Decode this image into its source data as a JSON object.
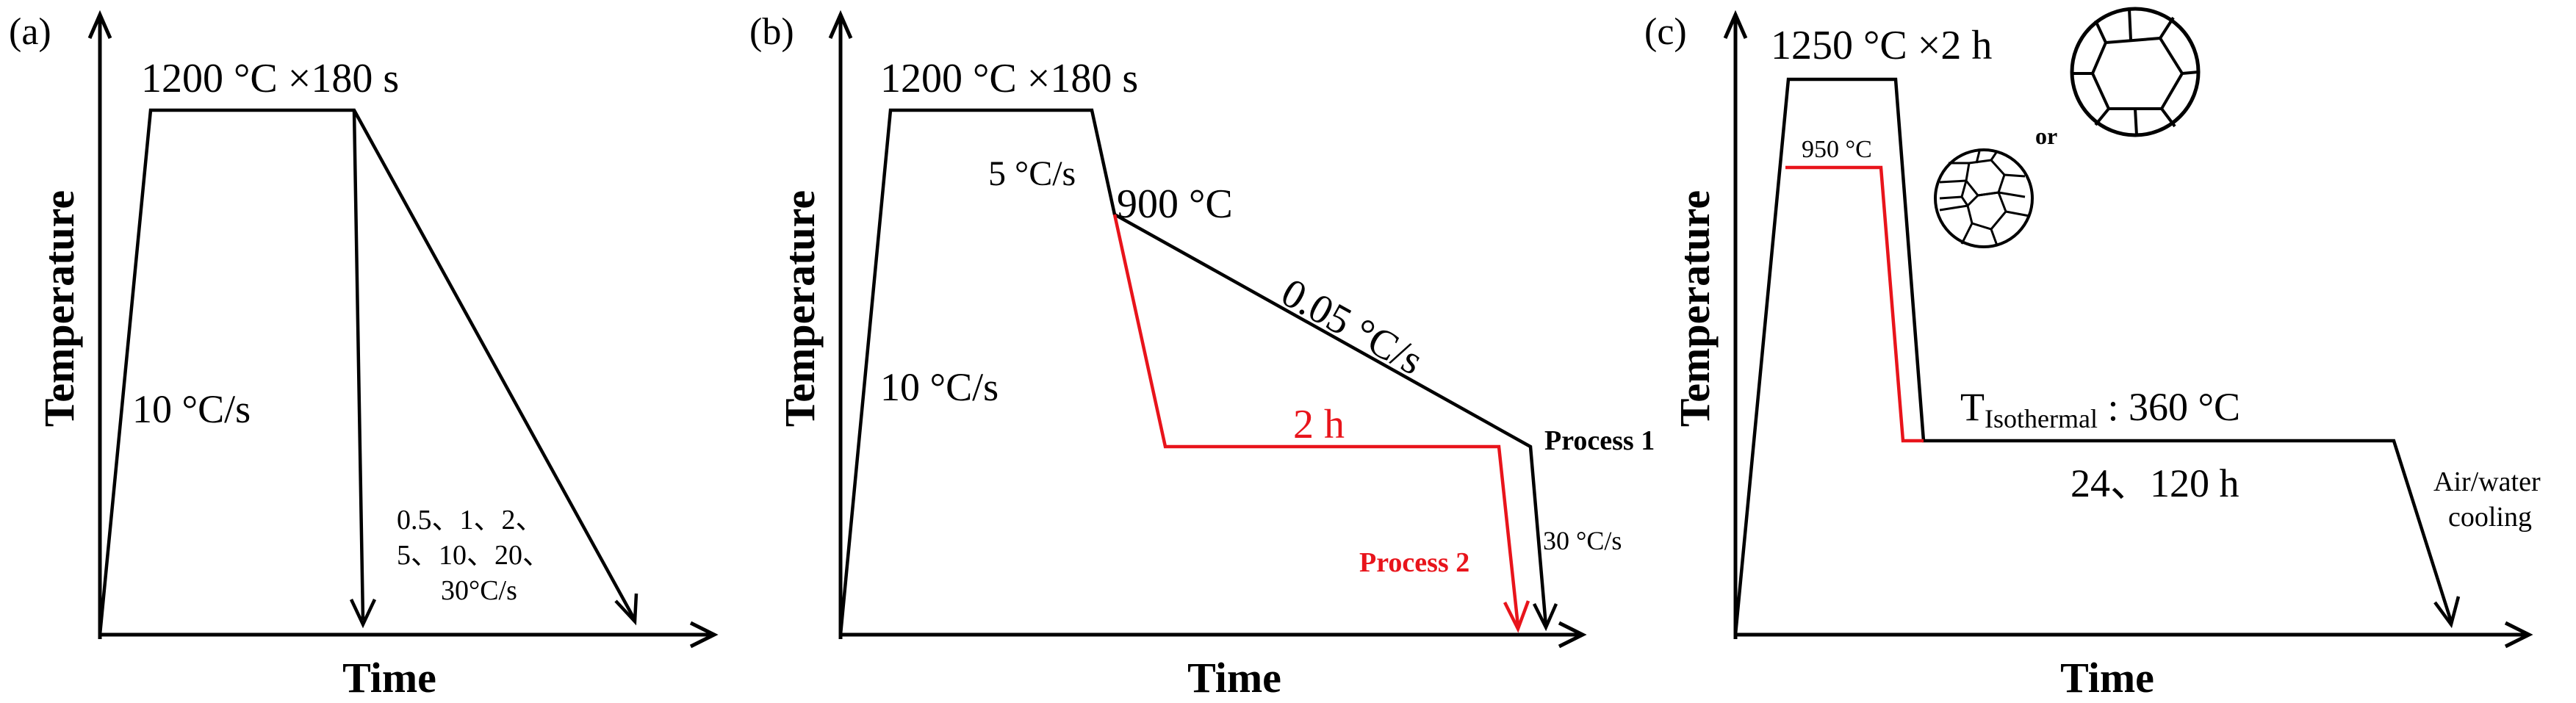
{
  "colors": {
    "ink": "#000000",
    "accent": "#e8141b"
  },
  "panel_a": {
    "label": "(a)",
    "ylabel": "Temperature",
    "xlabel": "Time",
    "hold": "1200 °C ×180 s",
    "heat_rate": "10 °C/s",
    "rates_line1": "0.5、1、2、",
    "rates_line2": "5、10、20、",
    "rates_line3": "30°C/s"
  },
  "panel_b": {
    "label": "(b)",
    "ylabel": "Temperature",
    "xlabel": "Time",
    "hold": "1200 °C ×180 s",
    "heat_rate": "10 °C/s",
    "cool_rate": "5 °C/s",
    "temp_900": "900 °C",
    "slow_rate": "0.05 °C/s",
    "hold_2h": "2 h",
    "process1": "Process 1",
    "process2": "Process 2",
    "quench_rate": "30 °C/s"
  },
  "panel_c": {
    "label": "(c)",
    "ylabel": "Temperature",
    "xlabel": "Time",
    "hold": "1250 °C ×2 h",
    "temp_950": "950 °C",
    "or_text": "or",
    "t_prefix": "T",
    "t_sub": "Isothermal",
    "t_value": " : 360 °C",
    "durations": "24、120 h",
    "cooling_line1": "Air/water",
    "cooling_line2": "cooling"
  }
}
